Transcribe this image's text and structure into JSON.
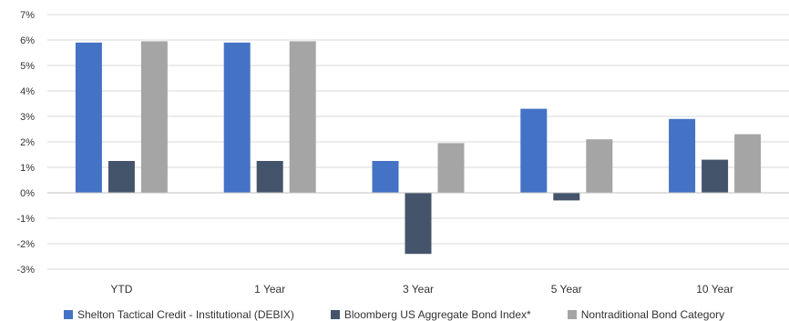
{
  "chart_data": {
    "type": "bar",
    "title": "",
    "xlabel": "",
    "ylabel": "",
    "categories": [
      "YTD",
      "1 Year",
      "3 Year",
      "5 Year",
      "10 Year"
    ],
    "series": [
      {
        "name": "Shelton Tactical Credit - Institutional (DEBIX)",
        "color": "#4472c4",
        "values": [
          5.9,
          5.9,
          1.25,
          3.3,
          2.9
        ]
      },
      {
        "name": "Bloomberg US Aggregate Bond Index*",
        "color": "#44546a",
        "values": [
          1.25,
          1.25,
          -2.4,
          -0.3,
          1.3
        ]
      },
      {
        "name": "Nontraditional Bond Category",
        "color": "#a5a5a5",
        "values": [
          5.95,
          5.95,
          1.95,
          2.1,
          2.3
        ]
      }
    ],
    "ylim": [
      -3,
      7
    ],
    "yticks": [
      -3,
      -2,
      -1,
      0,
      1,
      2,
      3,
      4,
      5,
      6,
      7
    ],
    "ytick_labels": [
      "-3%",
      "-2%",
      "-1%",
      "0%",
      "1%",
      "2%",
      "3%",
      "4%",
      "5%",
      "6%",
      "7%"
    ],
    "grid": true,
    "legend_position": "bottom"
  }
}
